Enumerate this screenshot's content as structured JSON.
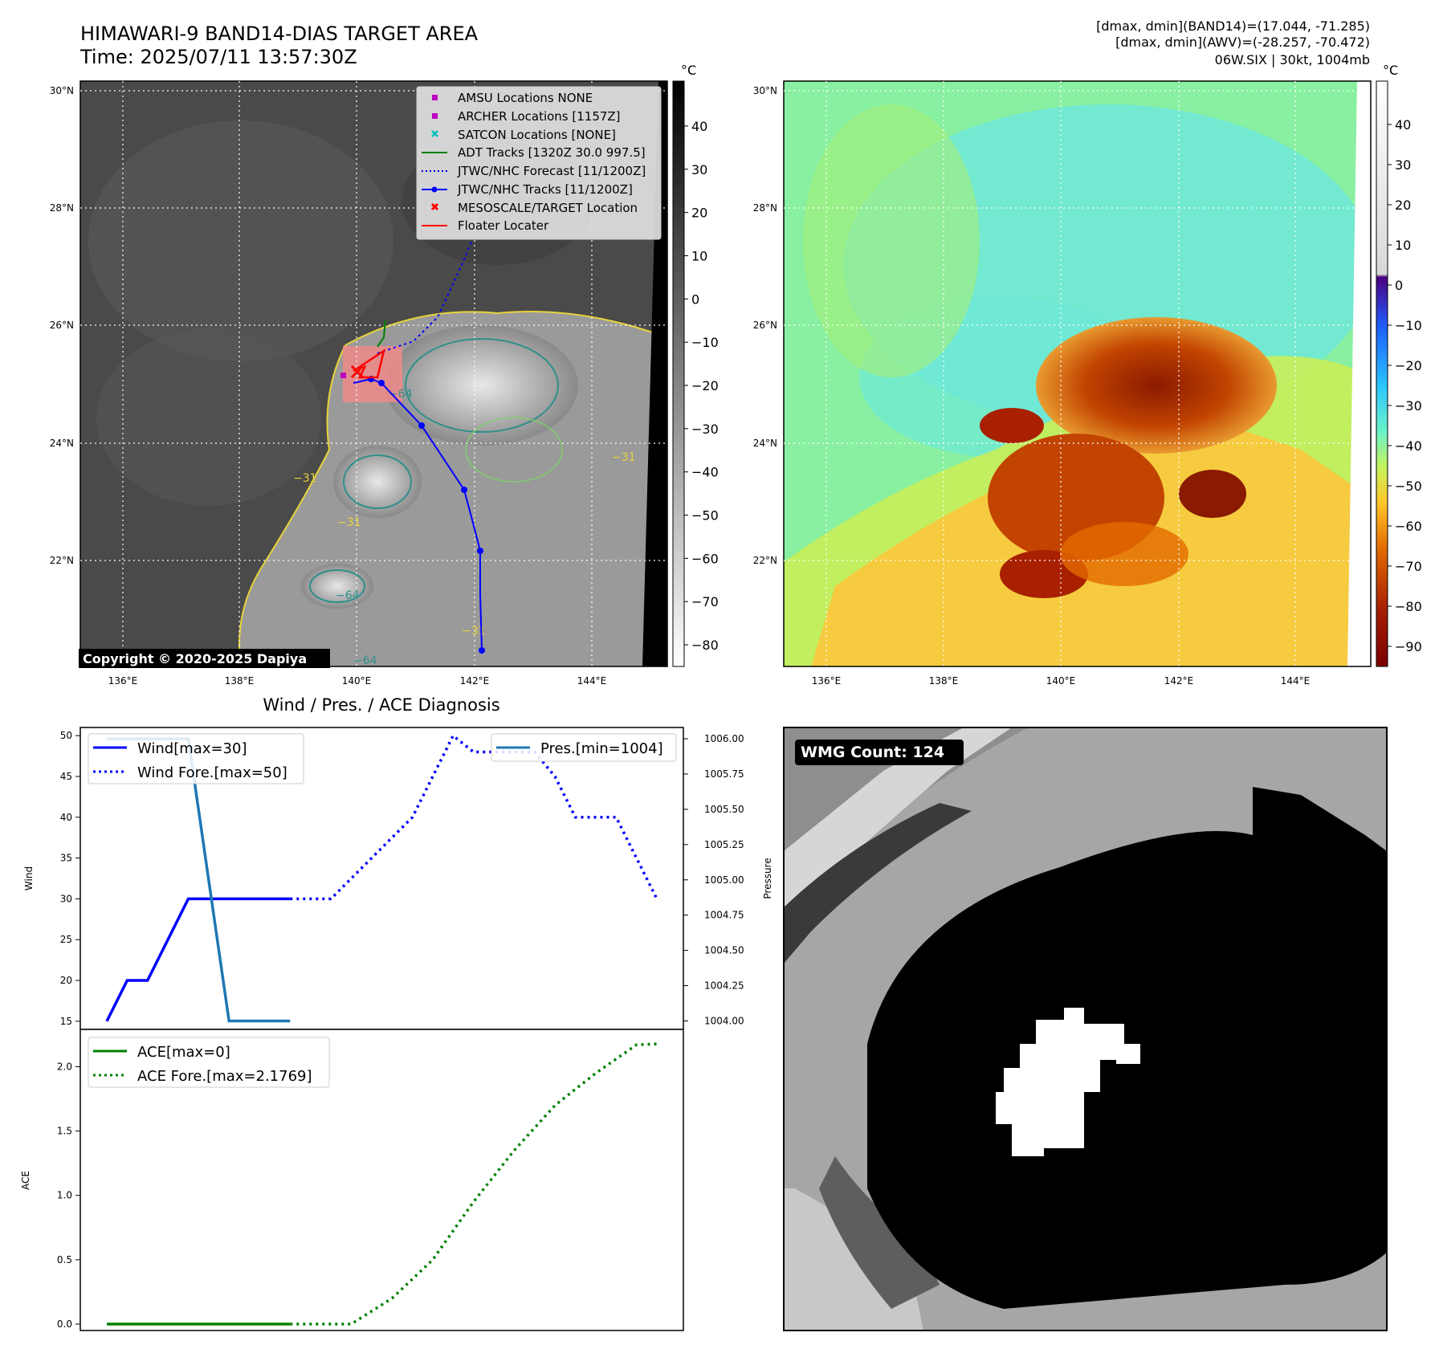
{
  "header": {
    "title_line1": "HIMAWARI-9 BAND14-DIAS TARGET AREA",
    "title_line2": "Time: 2025/07/11 13:57:30Z",
    "info_line1": "[dmax, dmin](BAND14)=(17.044, -71.285)",
    "info_line2": "[dmax, dmin](AWV)=(-28.257, -70.472)",
    "info_line3": "06W.SIX | 30kt, 1004mb"
  },
  "map_axes": {
    "lat_labels": [
      "30°N",
      "28°N",
      "26°N",
      "24°N",
      "22°N"
    ],
    "lon_labels": [
      "136°E",
      "138°E",
      "140°E",
      "142°E",
      "144°E"
    ]
  },
  "left_map": {
    "copyright": "Copyright © 2020-2025 Dapiya",
    "colorbar_unit": "°C",
    "colorbar_ticks": [
      "40",
      "30",
      "20",
      "10",
      "0",
      "−10",
      "−20",
      "−30",
      "−40",
      "−50",
      "−60",
      "−70",
      "−80"
    ],
    "contour_labels": [
      "−64",
      "−31",
      "−31",
      "−64",
      "−31",
      "−31",
      "−64"
    ],
    "legend": [
      {
        "label": "AMSU Locations NONE",
        "color": "#bf00bf",
        "marker": "square"
      },
      {
        "label": "ARCHER Locations [1157Z]",
        "color": "#bf00bf",
        "marker": "square"
      },
      {
        "label": "SATCON Locations [NONE]",
        "color": "#00bfbf",
        "marker": "x"
      },
      {
        "label": "ADT Tracks [1320Z 30.0 997.5]",
        "color": "#008000",
        "marker": "line"
      },
      {
        "label": "JTWC/NHC Forecast [11/1200Z]",
        "color": "#0000ff",
        "marker": "dotted"
      },
      {
        "label": "JTWC/NHC Tracks [11/1200Z]",
        "color": "#0000ff",
        "marker": "line-dot"
      },
      {
        "label": "MESOSCALE/TARGET Location",
        "color": "#ff0000",
        "marker": "x"
      },
      {
        "label": "Floater Locater",
        "color": "#ff0000",
        "marker": "line"
      }
    ]
  },
  "right_map": {
    "colorbar_unit": "°C",
    "colorbar_ticks": [
      "40",
      "30",
      "20",
      "10",
      "0",
      "−10",
      "−20",
      "−30",
      "−40",
      "−50",
      "−60",
      "−70",
      "−80",
      "−90"
    ]
  },
  "wmg": {
    "label": "WMG Count: 124"
  },
  "chart_data": [
    {
      "type": "line",
      "title": "Wind / Pres. / ACE Diagnosis",
      "ylabel": "Wind",
      "ylim": [
        14,
        51
      ],
      "yticks": [
        15,
        20,
        25,
        30,
        35,
        40,
        45,
        50
      ],
      "y2label": "Pressure",
      "y2lim": [
        1003.94,
        1006.08
      ],
      "y2ticks": [
        "1004.00",
        "1004.25",
        "1004.50",
        "1004.75",
        "1005.00",
        "1005.25",
        "1005.50",
        "1005.75",
        "1006.00"
      ],
      "xlim": [
        0,
        27
      ],
      "grid": false,
      "legend_left": "upper-left",
      "legend_right": "upper-right",
      "series": [
        {
          "name": "Wind[max=30]",
          "color": "#0000ff",
          "style": "solid",
          "points": [
            [
              0,
              15
            ],
            [
              1,
              20
            ],
            [
              2,
              20
            ],
            [
              4,
              30
            ],
            [
              5,
              30
            ],
            [
              6,
              30
            ],
            [
              7,
              30
            ],
            [
              8,
              30
            ],
            [
              9,
              30
            ]
          ]
        },
        {
          "name": "Wind Fore.[max=50]",
          "color": "#0000ff",
          "style": "dotted",
          "points": [
            [
              9,
              30
            ],
            [
              11,
              30
            ],
            [
              13,
              35
            ],
            [
              15,
              40
            ],
            [
              16,
              45
            ],
            [
              17,
              50
            ],
            [
              18,
              48
            ],
            [
              19,
              48
            ],
            [
              20,
              48
            ],
            [
              21,
              48
            ],
            [
              22,
              45
            ],
            [
              23,
              40
            ],
            [
              24,
              40
            ],
            [
              25,
              40
            ],
            [
              26,
              35
            ],
            [
              27,
              30
            ]
          ]
        },
        {
          "name": "Pres.[min=1004]",
          "color": "#1f77b4",
          "style": "solid",
          "axis": "right",
          "points": [
            [
              0,
              1006
            ],
            [
              4,
              1006
            ],
            [
              6,
              1004
            ],
            [
              9,
              1004
            ]
          ]
        }
      ]
    },
    {
      "type": "line",
      "ylabel": "ACE",
      "ylim": [
        -0.05,
        2.29
      ],
      "yticks": [
        "0.0",
        "0.5",
        "1.0",
        "1.5",
        "2.0"
      ],
      "xlim": [
        0,
        27
      ],
      "grid": false,
      "legend": "upper-left",
      "series": [
        {
          "name": "ACE[max=0]",
          "color": "#008000",
          "style": "solid",
          "points": [
            [
              0,
              0
            ],
            [
              9,
              0
            ]
          ]
        },
        {
          "name": "ACE Fore.[max=2.1769]",
          "color": "#008000",
          "style": "dotted",
          "points": [
            [
              9,
              0
            ],
            [
              12,
              0
            ],
            [
              14,
              0.2
            ],
            [
              16,
              0.5
            ],
            [
              18,
              0.95
            ],
            [
              20,
              1.35
            ],
            [
              22,
              1.7
            ],
            [
              24,
              1.95
            ],
            [
              26,
              2.17
            ],
            [
              27,
              2.1769
            ]
          ]
        }
      ]
    }
  ]
}
